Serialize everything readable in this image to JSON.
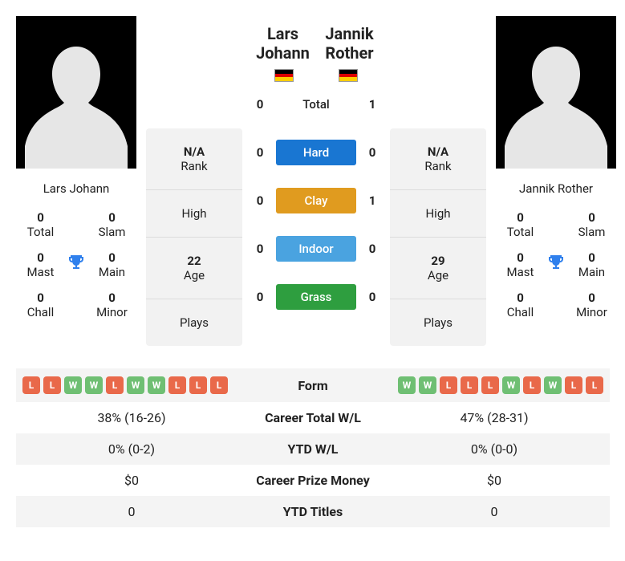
{
  "p1": {
    "name": "Lars Johann",
    "flag": "de",
    "titles": {
      "total": {
        "v": "0",
        "l": "Total"
      },
      "slam": {
        "v": "0",
        "l": "Slam"
      },
      "mast": {
        "v": "0",
        "l": "Mast"
      },
      "main": {
        "v": "0",
        "l": "Main"
      },
      "chall": {
        "v": "0",
        "l": "Chall"
      },
      "minor": {
        "v": "0",
        "l": "Minor"
      }
    },
    "stats": {
      "rank": {
        "v": "N/A",
        "l": "Rank"
      },
      "high": {
        "v": "",
        "l": "High"
      },
      "age": {
        "v": "22",
        "l": "Age"
      },
      "plays": {
        "v": "",
        "l": "Plays"
      }
    }
  },
  "p2": {
    "name": "Jannik Rother",
    "flag": "de",
    "titles": {
      "total": {
        "v": "0",
        "l": "Total"
      },
      "slam": {
        "v": "0",
        "l": "Slam"
      },
      "mast": {
        "v": "0",
        "l": "Mast"
      },
      "main": {
        "v": "0",
        "l": "Main"
      },
      "chall": {
        "v": "0",
        "l": "Chall"
      },
      "minor": {
        "v": "0",
        "l": "Minor"
      }
    },
    "stats": {
      "rank": {
        "v": "N/A",
        "l": "Rank"
      },
      "high": {
        "v": "",
        "l": "High"
      },
      "age": {
        "v": "29",
        "l": "Age"
      },
      "plays": {
        "v": "",
        "l": "Plays"
      }
    }
  },
  "h2h": {
    "total": {
      "label": "Total",
      "p1": "0",
      "p2": "1"
    },
    "hard": {
      "label": "Hard",
      "p1": "0",
      "p2": "0"
    },
    "clay": {
      "label": "Clay",
      "p1": "0",
      "p2": "1"
    },
    "indoor": {
      "label": "Indoor",
      "p1": "0",
      "p2": "0"
    },
    "grass": {
      "label": "Grass",
      "p1": "0",
      "p2": "0"
    }
  },
  "comparison": {
    "form": {
      "label": "Form",
      "p1": [
        "L",
        "L",
        "W",
        "W",
        "L",
        "W",
        "W",
        "L",
        "L",
        "L"
      ],
      "p2": [
        "W",
        "W",
        "L",
        "L",
        "L",
        "W",
        "L",
        "W",
        "L",
        "L"
      ]
    },
    "career_wl": {
      "label": "Career Total W/L",
      "p1": "38% (16-26)",
      "p2": "47% (28-31)"
    },
    "ytd_wl": {
      "label": "YTD W/L",
      "p1": "0% (0-2)",
      "p2": "0% (0-0)"
    },
    "prize": {
      "label": "Career Prize Money",
      "p1": "$0",
      "p2": "$0"
    },
    "ytd_titles": {
      "label": "YTD Titles",
      "p1": "0",
      "p2": "0"
    }
  },
  "icons": {
    "trophy": "🏆"
  },
  "colors": {
    "hard": "#1976d2",
    "clay": "#e09b1f",
    "indoor": "#4aa3e0",
    "grass": "#2e9e3f",
    "win": "#6fbf73",
    "loss": "#e9694a",
    "trophy": "#2f80ed"
  }
}
